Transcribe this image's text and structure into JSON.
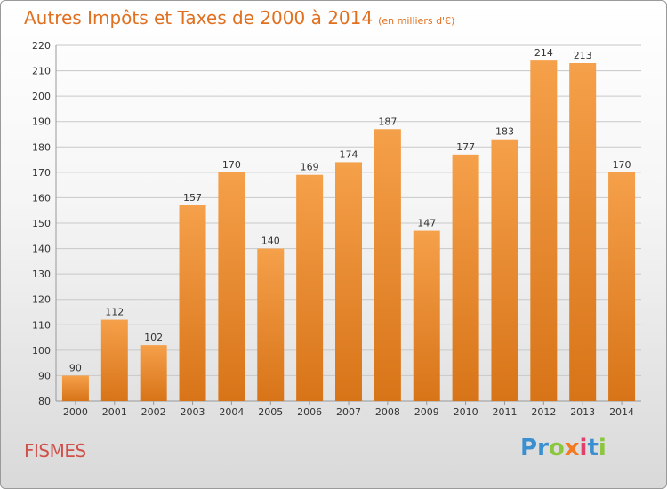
{
  "header": {
    "title": "Autres Impôts et Taxes de 2000 à 2014",
    "subtitle": "(en milliers d'€)"
  },
  "footer": {
    "place": "FISMES",
    "logo_letters": [
      "P",
      "r",
      "o",
      "x",
      "i",
      "t",
      "i"
    ],
    "logo_colors": [
      "#3a8fd0",
      "#3a8fd0",
      "#8cc63f",
      "#f47920",
      "#e0406a",
      "#3a8fd0",
      "#8cc63f"
    ]
  },
  "colors": {
    "bar_top": "#f5a04a",
    "bar_bottom": "#d87418",
    "grid": "#c8c8c8",
    "label": "#333333"
  },
  "chart_data": {
    "type": "bar",
    "categories": [
      "2000",
      "2001",
      "2002",
      "2003",
      "2004",
      "2005",
      "2006",
      "2007",
      "2008",
      "2009",
      "2010",
      "2011",
      "2012",
      "2013",
      "2014"
    ],
    "values": [
      90,
      112,
      102,
      157,
      170,
      140,
      169,
      174,
      187,
      147,
      177,
      183,
      214,
      213,
      170
    ],
    "ylim": [
      80,
      220
    ],
    "yticks": [
      80,
      90,
      100,
      110,
      120,
      130,
      140,
      150,
      160,
      170,
      180,
      190,
      200,
      210,
      220
    ],
    "grid": true
  }
}
